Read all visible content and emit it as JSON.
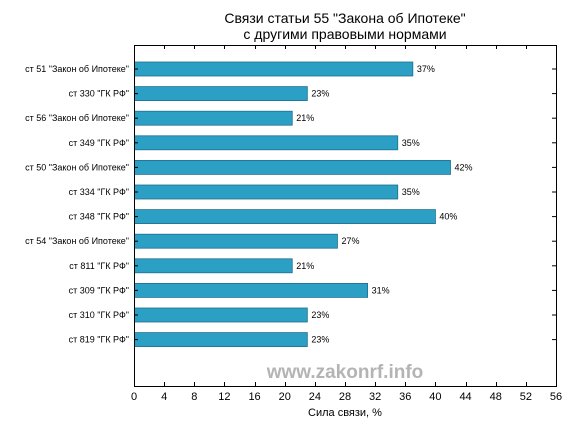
{
  "chart_data": {
    "type": "bar",
    "orientation": "horizontal",
    "title": [
      "Связи статьи 55 \"Закона об Ипотеке\"",
      "с другими правовыми нормами"
    ],
    "xlabel": "Сила связи, %",
    "ylabel": "",
    "xlim": [
      0,
      56
    ],
    "xticks": [
      "0",
      "4",
      "8",
      "12",
      "16",
      "20",
      "24",
      "28",
      "32",
      "36",
      "40",
      "44",
      "48",
      "52",
      "56"
    ],
    "categories": [
      "ст 51 \"Закон об Ипотеке\"",
      "ст 330 \"ГК РФ\"",
      "ст 56 \"Закон об Ипотеке\"",
      "ст 349 \"ГК РФ\"",
      "ст 50 \"Закон об Ипотеке\"",
      "ст 334 \"ГК РФ\"",
      "ст 348 \"ГК РФ\"",
      "ст 54 \"Закон об Ипотеке\"",
      "ст 811 \"ГК РФ\"",
      "ст 309 \"ГК РФ\"",
      "ст 310 \"ГК РФ\"",
      "ст 819 \"ГК РФ\""
    ],
    "values": [
      37,
      23,
      21,
      35,
      42,
      35,
      40,
      27,
      21,
      31,
      23,
      23
    ],
    "data_labels": [
      "37%",
      "23%",
      "21%",
      "35%",
      "42%",
      "35%",
      "40%",
      "27%",
      "21%",
      "31%",
      "23%",
      "23%"
    ],
    "bar_color": "#2b9fc4",
    "grid": false,
    "legend": "none"
  },
  "watermark": "www.zakonrf.info"
}
